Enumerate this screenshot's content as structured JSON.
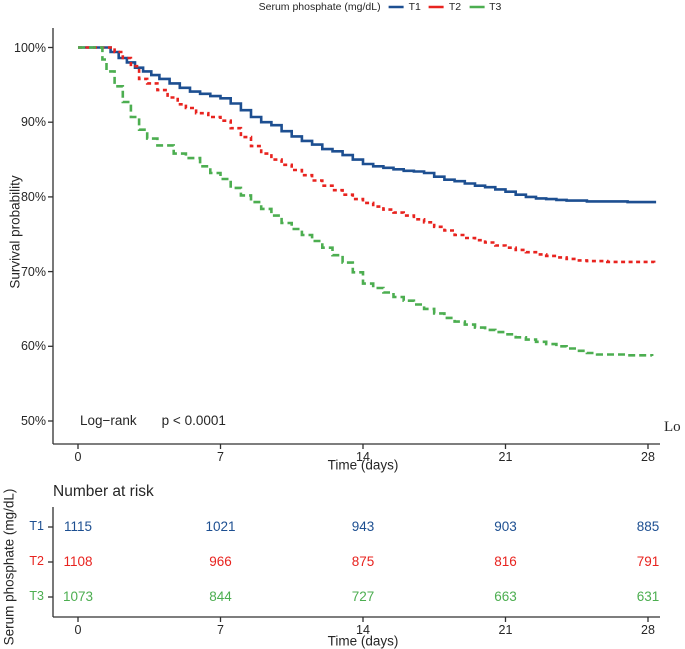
{
  "legend": {
    "title": "Serum phosphate (mg/dL)",
    "items": [
      {
        "label": "T1",
        "color": "#1d4f91",
        "dash": ""
      },
      {
        "label": "T2",
        "color": "#e8231f",
        "dash": "4,3"
      },
      {
        "label": "T3",
        "color": "#4cae50",
        "dash": "7,3,1.5,3"
      }
    ]
  },
  "chart_data": {
    "type": "line",
    "subtype": "kaplan-meier-step",
    "title": "",
    "xlabel": "Time (days)",
    "ylabel": "Survival probability",
    "xlim": [
      0,
      28
    ],
    "ylim": [
      50,
      100
    ],
    "grid": false,
    "legend_position": "top",
    "x_ticks": [
      {
        "value": 0,
        "label": "0"
      },
      {
        "value": 7,
        "label": "7"
      },
      {
        "value": 14,
        "label": "14"
      },
      {
        "value": 21,
        "label": "21"
      },
      {
        "value": 28,
        "label": "28"
      }
    ],
    "y_ticks": [
      {
        "value": 100,
        "label": "100%"
      },
      {
        "value": 90,
        "label": "90%"
      },
      {
        "value": 80,
        "label": "80%"
      },
      {
        "value": 70,
        "label": "70%"
      },
      {
        "value": 60,
        "label": "60%"
      },
      {
        "value": 50,
        "label": "50%"
      }
    ],
    "series": [
      {
        "name": "T1",
        "color": "#1d4f91",
        "dash": "",
        "points": [
          [
            0,
            100
          ],
          [
            1.2,
            100
          ],
          [
            1.6,
            99.4
          ],
          [
            2,
            98.6
          ],
          [
            2.4,
            98
          ],
          [
            2.8,
            97.3
          ],
          [
            3.2,
            96.8
          ],
          [
            3.6,
            96.3
          ],
          [
            4,
            95.8
          ],
          [
            4.5,
            95.2
          ],
          [
            5,
            94.6
          ],
          [
            5.5,
            94.1
          ],
          [
            6,
            93.8
          ],
          [
            6.5,
            93.5
          ],
          [
            7,
            93.2
          ],
          [
            7.5,
            92.5
          ],
          [
            8,
            91.6
          ],
          [
            8.5,
            90.7
          ],
          [
            9,
            90
          ],
          [
            9.5,
            89.6
          ],
          [
            10,
            88.8
          ],
          [
            10.5,
            88.1
          ],
          [
            11,
            87.5
          ],
          [
            11.5,
            87
          ],
          [
            12,
            86.4
          ],
          [
            12.5,
            86.1
          ],
          [
            13,
            85.6
          ],
          [
            13.5,
            85
          ],
          [
            14,
            84.4
          ],
          [
            14.5,
            84.1
          ],
          [
            15,
            83.9
          ],
          [
            15.5,
            83.7
          ],
          [
            16,
            83.5
          ],
          [
            16.5,
            83.4
          ],
          [
            17,
            83.2
          ],
          [
            17.5,
            82.7
          ],
          [
            18,
            82.3
          ],
          [
            18.5,
            82.1
          ],
          [
            19,
            81.8
          ],
          [
            19.5,
            81.5
          ],
          [
            20,
            81.3
          ],
          [
            20.5,
            81
          ],
          [
            21,
            80.7
          ],
          [
            21.5,
            80.3
          ],
          [
            22,
            80
          ],
          [
            22.5,
            79.8
          ],
          [
            23,
            79.7
          ],
          [
            23.5,
            79.6
          ],
          [
            24,
            79.5
          ],
          [
            25,
            79.4
          ],
          [
            26,
            79.4
          ],
          [
            27,
            79.3
          ],
          [
            28.4,
            79.3
          ]
        ]
      },
      {
        "name": "T2",
        "color": "#e8231f",
        "dash": "4,3.5",
        "points": [
          [
            0,
            100
          ],
          [
            1.4,
            100
          ],
          [
            1.8,
            99.4
          ],
          [
            2.2,
            98.6
          ],
          [
            2.6,
            97.5
          ],
          [
            3,
            95.8
          ],
          [
            3.4,
            95.2
          ],
          [
            3.9,
            94.3
          ],
          [
            4.4,
            93.3
          ],
          [
            4.9,
            92.4
          ],
          [
            5.3,
            91.9
          ],
          [
            5.8,
            91.2
          ],
          [
            6.4,
            90.7
          ],
          [
            7,
            90.2
          ],
          [
            7.5,
            89.2
          ],
          [
            8,
            88
          ],
          [
            8.5,
            86.8
          ],
          [
            9,
            85.8
          ],
          [
            9.5,
            85
          ],
          [
            10,
            84.3
          ],
          [
            10.5,
            83.6
          ],
          [
            11,
            82.9
          ],
          [
            11.5,
            82.2
          ],
          [
            12,
            81.5
          ],
          [
            12.5,
            80.9
          ],
          [
            13,
            80.3
          ],
          [
            13.5,
            79.7
          ],
          [
            14,
            79.2
          ],
          [
            14.5,
            78.7
          ],
          [
            15,
            78.3
          ],
          [
            15.5,
            77.9
          ],
          [
            16,
            77.5
          ],
          [
            16.5,
            77
          ],
          [
            17,
            76.6
          ],
          [
            17.5,
            76
          ],
          [
            18,
            75.5
          ],
          [
            18.5,
            74.9
          ],
          [
            19,
            74.5
          ],
          [
            19.5,
            74.2
          ],
          [
            20,
            73.9
          ],
          [
            20.5,
            73.5
          ],
          [
            21,
            73.2
          ],
          [
            21.5,
            72.9
          ],
          [
            22,
            72.6
          ],
          [
            22.5,
            72.3
          ],
          [
            23,
            72.1
          ],
          [
            23.5,
            71.9
          ],
          [
            24,
            71.7
          ],
          [
            24.5,
            71.5
          ],
          [
            25,
            71.4
          ],
          [
            26,
            71.3
          ],
          [
            27,
            71.3
          ],
          [
            28.3,
            71.2
          ]
        ]
      },
      {
        "name": "T3",
        "color": "#4cae50",
        "dash": "7,4",
        "points": [
          [
            0,
            100
          ],
          [
            0.9,
            100
          ],
          [
            1.2,
            98.4
          ],
          [
            1.4,
            96.8
          ],
          [
            1.8,
            94.8
          ],
          [
            2.2,
            92.7
          ],
          [
            2.6,
            90.7
          ],
          [
            3,
            89
          ],
          [
            3.4,
            87.8
          ],
          [
            3.9,
            86.9
          ],
          [
            4.7,
            85.8
          ],
          [
            5.3,
            85.2
          ],
          [
            6,
            84.1
          ],
          [
            6.5,
            83.2
          ],
          [
            7,
            82.4
          ],
          [
            7.5,
            81.2
          ],
          [
            8,
            80.2
          ],
          [
            8.5,
            79.3
          ],
          [
            9,
            78.4
          ],
          [
            9.5,
            77.5
          ],
          [
            10,
            76.5
          ],
          [
            10.5,
            75.7
          ],
          [
            11,
            74.9
          ],
          [
            11.5,
            74.1
          ],
          [
            12,
            73.2
          ],
          [
            12.5,
            72.2
          ],
          [
            13,
            71.2
          ],
          [
            13.5,
            69.9
          ],
          [
            14,
            68.4
          ],
          [
            14.5,
            67.8
          ],
          [
            15,
            67.2
          ],
          [
            15.5,
            66.6
          ],
          [
            16,
            66.1
          ],
          [
            16.5,
            65.6
          ],
          [
            17,
            65
          ],
          [
            17.5,
            64.4
          ],
          [
            18,
            63.8
          ],
          [
            18.5,
            63.3
          ],
          [
            19,
            62.9
          ],
          [
            19.5,
            62.5
          ],
          [
            20,
            62.2
          ],
          [
            20.5,
            61.9
          ],
          [
            21,
            61.6
          ],
          [
            21.5,
            61.2
          ],
          [
            22,
            60.9
          ],
          [
            22.5,
            60.6
          ],
          [
            23,
            60.3
          ],
          [
            23.5,
            60
          ],
          [
            24,
            59.7
          ],
          [
            24.5,
            59.4
          ],
          [
            25,
            59.1
          ],
          [
            25.5,
            58.9
          ],
          [
            26,
            58.9
          ],
          [
            27,
            58.8
          ],
          [
            28.2,
            58.7
          ]
        ]
      }
    ],
    "annotation": {
      "test_label": "Log−rank",
      "p_value": "p < 0.0001"
    },
    "clipped_text": "Lo"
  },
  "risk_table": {
    "title": "Number at risk",
    "ylabel": "Serum phosphate (mg/dL)",
    "xlabel": "Time (days)",
    "x_ticks": [
      {
        "value": 0,
        "label": "0"
      },
      {
        "value": 7,
        "label": "7"
      },
      {
        "value": 14,
        "label": "14"
      },
      {
        "value": 21,
        "label": "21"
      },
      {
        "value": 28,
        "label": "28"
      }
    ],
    "rows": [
      {
        "label": "T1",
        "color": "#1d4f91",
        "values": [
          "1115",
          "1021",
          "943",
          "903",
          "885"
        ]
      },
      {
        "label": "T2",
        "color": "#e8231f",
        "values": [
          "1108",
          "966",
          "875",
          "816",
          "791"
        ]
      },
      {
        "label": "T3",
        "color": "#4cae50",
        "values": [
          "1073",
          "844",
          "727",
          "663",
          "631"
        ]
      }
    ]
  }
}
